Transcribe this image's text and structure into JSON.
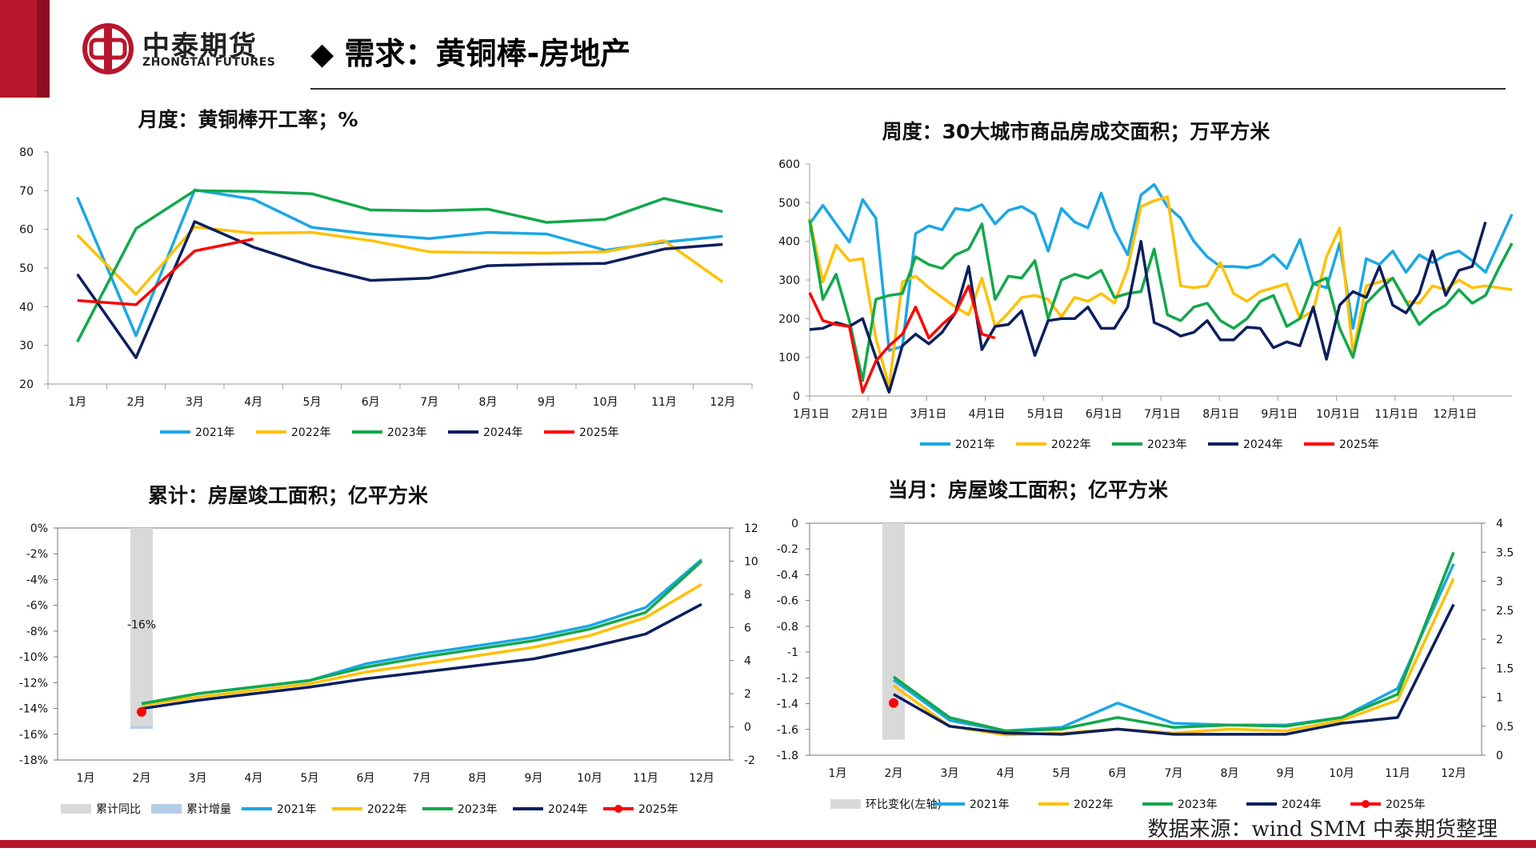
{
  "brand": {
    "cn": "中泰期货",
    "en": "ZHONGTAI FUTURES"
  },
  "page_title": "需求：黄铜棒-房地产",
  "source": "数据来源：wind SMM 中泰期货整理",
  "colors": {
    "2021": "#1aa7e6",
    "2022": "#ffc000",
    "2023": "#12a84b",
    "2024": "#0b1f5e",
    "2025": "#ff0000",
    "bar": "#d9d9d9",
    "bar2": "#b4cde6"
  },
  "chart_data": [
    {
      "id": "c1",
      "type": "line",
      "title": "月度：黄铜棒开工率；%",
      "categories": [
        "1月",
        "2月",
        "3月",
        "4月",
        "5月",
        "6月",
        "7月",
        "8月",
        "9月",
        "10月",
        "11月",
        "12月"
      ],
      "ylim": [
        20,
        80
      ],
      "yticks": [
        20,
        30,
        40,
        50,
        60,
        70,
        80
      ],
      "series": [
        {
          "name": "2021年",
          "key": "2021",
          "values": [
            68.3,
            32.5,
            70.2,
            67.8,
            60.5,
            58.8,
            57.6,
            59.2,
            58.8,
            54.6,
            56.7,
            58.2
          ]
        },
        {
          "name": "2022年",
          "key": "2022",
          "values": [
            58.5,
            43.2,
            60.6,
            59.0,
            59.2,
            57.1,
            54.2,
            54.0,
            53.9,
            54.2,
            57.1,
            46.4
          ]
        },
        {
          "name": "2023年",
          "key": "2023",
          "values": [
            30.9,
            60.2,
            70.0,
            69.8,
            69.2,
            65.0,
            64.8,
            65.2,
            61.8,
            62.6,
            68.0,
            64.6
          ]
        },
        {
          "name": "2024年",
          "key": "2024",
          "values": [
            48.4,
            26.8,
            62.0,
            55.4,
            50.5,
            46.8,
            47.4,
            50.6,
            51.0,
            51.2,
            54.9,
            56.1
          ]
        },
        {
          "name": "2025年",
          "key": "2025",
          "values": [
            41.6,
            40.5,
            54.4,
            57.5,
            null,
            null,
            null,
            null,
            null,
            null,
            null,
            null
          ]
        }
      ]
    },
    {
      "id": "c2",
      "type": "line",
      "title": "周度：30大城市商品房成交面积；万平方米",
      "xticks": [
        "1月1日",
        "2月1日",
        "3月1日",
        "4月1日",
        "5月1日",
        "6月1日",
        "7月1日",
        "8月1日",
        "9月1日",
        "10月1日",
        "11月1日",
        "12月1日"
      ],
      "ylim": [
        0,
        600
      ],
      "yticks": [
        0,
        100,
        200,
        300,
        400,
        500,
        600
      ],
      "series": [
        {
          "name": "2021年",
          "key": "2021",
          "values": [
            445,
            493,
            445,
            398,
            508,
            460,
            118,
            128,
            420,
            440,
            430,
            485,
            480,
            495,
            445,
            480,
            490,
            470,
            375,
            485,
            450,
            435,
            525,
            430,
            365,
            520,
            547,
            490,
            460,
            400,
            360,
            335,
            335,
            332,
            340,
            365,
            330,
            405,
            290,
            280,
            395,
            175,
            355,
            340,
            375,
            320,
            365,
            345,
            365,
            375,
            350,
            320,
            395,
            470
          ]
        },
        {
          "name": "2022年",
          "key": "2022",
          "values": [
            460,
            295,
            390,
            350,
            355,
            150,
            25,
            295,
            310,
            280,
            255,
            230,
            210,
            305,
            180,
            215,
            255,
            260,
            250,
            205,
            255,
            245,
            265,
            240,
            330,
            490,
            505,
            515,
            285,
            280,
            285,
            345,
            265,
            245,
            270,
            280,
            290,
            200,
            220,
            360,
            435,
            110,
            285,
            295,
            305,
            245,
            240,
            285,
            275,
            300,
            280,
            285,
            280,
            275
          ]
        },
        {
          "name": "2023年",
          "key": "2023",
          "values": [
            455,
            250,
            315,
            195,
            40,
            250,
            260,
            265,
            360,
            340,
            330,
            365,
            380,
            445,
            250,
            310,
            305,
            350,
            200,
            300,
            315,
            305,
            325,
            255,
            265,
            270,
            380,
            210,
            195,
            230,
            240,
            195,
            175,
            200,
            245,
            260,
            180,
            200,
            290,
            305,
            175,
            100,
            240,
            275,
            305,
            245,
            185,
            215,
            235,
            275,
            240,
            260,
            330,
            395
          ]
        },
        {
          "name": "2024年",
          "key": "2024",
          "values": [
            172,
            175,
            190,
            180,
            200,
            100,
            10,
            130,
            160,
            135,
            165,
            215,
            335,
            120,
            180,
            185,
            220,
            105,
            195,
            200,
            200,
            230,
            175,
            175,
            230,
            400,
            190,
            175,
            155,
            165,
            195,
            145,
            145,
            178,
            175,
            125,
            140,
            130,
            230,
            95,
            235,
            270,
            255,
            335,
            235,
            215,
            265,
            375,
            260,
            325,
            335,
            450,
            null,
            null
          ]
        },
        {
          "name": "2025年",
          "key": "2025",
          "values": [
            267,
            195,
            185,
            180,
            10,
            90,
            130,
            160,
            230,
            150,
            185,
            215,
            285,
            160,
            150,
            null,
            null,
            null,
            null,
            null,
            null,
            null,
            null,
            null,
            null,
            null,
            null,
            null,
            null,
            null,
            null,
            null,
            null,
            null,
            null,
            null,
            null,
            null,
            null,
            null,
            null,
            null,
            null,
            null,
            null,
            null,
            null,
            null,
            null,
            null,
            null,
            null,
            null,
            null
          ]
        }
      ]
    },
    {
      "id": "c3",
      "type": "line",
      "title": "累计：房屋竣工面积；亿平方米",
      "categories": [
        "1月",
        "2月",
        "3月",
        "4月",
        "5月",
        "6月",
        "7月",
        "8月",
        "9月",
        "10月",
        "11月",
        "12月"
      ],
      "ylim_left": [
        -18,
        0
      ],
      "yticks_left": [
        "0%",
        "-2%",
        "-4%",
        "-6%",
        "-8%",
        "-10%",
        "-12%",
        "-14%",
        "-16%",
        "-18%"
      ],
      "ylim_right": [
        -2,
        12
      ],
      "yticks_right": [
        12,
        10,
        8,
        6,
        4,
        2,
        0,
        -2
      ],
      "bar_yoy": {
        "name": "累计同比",
        "category_index": 1,
        "value": -15.6,
        "label": "-16%"
      },
      "bar_inc": {
        "name": "累计增量",
        "category_index": 1,
        "value": -0.15
      },
      "series": [
        {
          "name": "2021年",
          "key": "2021",
          "values": [
            null,
            1.4,
            2.0,
            2.4,
            2.8,
            3.8,
            4.4,
            4.9,
            5.4,
            6.1,
            7.2,
            10.1
          ]
        },
        {
          "name": "2022年",
          "key": "2022",
          "values": [
            null,
            1.3,
            1.8,
            2.2,
            2.6,
            3.3,
            3.8,
            4.3,
            4.8,
            5.5,
            6.6,
            8.6
          ]
        },
        {
          "name": "2023年",
          "key": "2023",
          "values": [
            null,
            1.4,
            2.0,
            2.4,
            2.8,
            3.6,
            4.2,
            4.7,
            5.2,
            5.9,
            6.9,
            10.0
          ]
        },
        {
          "name": "2024年",
          "key": "2024",
          "values": [
            null,
            1.1,
            1.6,
            2.0,
            2.4,
            2.9,
            3.3,
            3.7,
            4.1,
            4.8,
            5.6,
            7.4
          ]
        },
        {
          "name": "2025年",
          "key": "2025",
          "values": [
            null,
            0.9,
            null,
            null,
            null,
            null,
            null,
            null,
            null,
            null,
            null,
            null
          ]
        }
      ]
    },
    {
      "id": "c4",
      "type": "line",
      "title": "当月：房屋竣工面积；亿平方米",
      "categories": [
        "1月",
        "2月",
        "3月",
        "4月",
        "5月",
        "6月",
        "7月",
        "8月",
        "9月",
        "10月",
        "11月",
        "12月"
      ],
      "ylim_left": [
        -1.8,
        0
      ],
      "yticks_left": [
        "0",
        "-0.2",
        "-0.4",
        "-0.6",
        "-0.8",
        "-1",
        "-1.2",
        "-1.4",
        "-1.6",
        "-1.8"
      ],
      "ylim_right": [
        0,
        4
      ],
      "yticks_right": [
        "4",
        "3.5",
        "3",
        "2.5",
        "2",
        "1.5",
        "1",
        "0.5",
        "0"
      ],
      "bar_mom": {
        "name": "环比变化(左轴)",
        "category_index": 1,
        "value": -1.68
      },
      "series": [
        {
          "name": "2021年",
          "key": "2021",
          "values": [
            null,
            1.3,
            0.6,
            0.42,
            0.48,
            0.9,
            0.55,
            0.52,
            0.52,
            0.65,
            1.15,
            3.3
          ]
        },
        {
          "name": "2022年",
          "key": "2022",
          "values": [
            null,
            1.2,
            0.5,
            0.35,
            0.38,
            0.45,
            0.38,
            0.45,
            0.42,
            0.6,
            0.95,
            3.05
          ]
        },
        {
          "name": "2023年",
          "key": "2023",
          "values": [
            null,
            1.35,
            0.65,
            0.42,
            0.45,
            0.65,
            0.48,
            0.52,
            0.5,
            0.65,
            1.05,
            3.5
          ]
        },
        {
          "name": "2024年",
          "key": "2024",
          "values": [
            null,
            1.05,
            0.5,
            0.38,
            0.36,
            0.45,
            0.36,
            0.36,
            0.36,
            0.55,
            0.65,
            2.6
          ]
        },
        {
          "name": "2025年",
          "key": "2025",
          "values": [
            null,
            0.9,
            null,
            null,
            null,
            null,
            null,
            null,
            null,
            null,
            null,
            null
          ]
        }
      ]
    }
  ]
}
